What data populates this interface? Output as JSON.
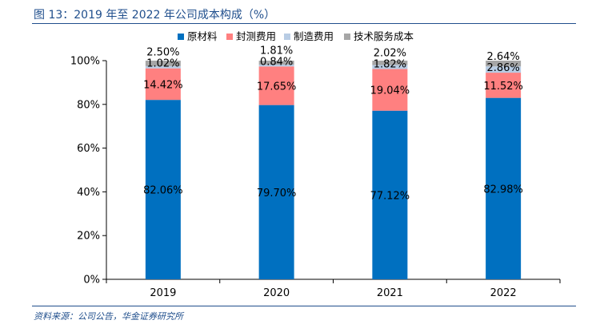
{
  "figure": {
    "title": "图 13：2019 年至 2022 年公司成本构成（%）",
    "source": "资料来源：公司公告，华金证券研究所"
  },
  "chart_data": {
    "type": "bar",
    "stacked": true,
    "categories": [
      "2019",
      "2020",
      "2021",
      "2022"
    ],
    "series": [
      {
        "name": "原材料",
        "color": "#0070c0",
        "values": [
          82.06,
          79.7,
          77.12,
          82.98
        ],
        "labels": [
          "82.06%",
          "79.70%",
          "77.12%",
          "82.98%"
        ]
      },
      {
        "name": "封测费用",
        "color": "#ff8080",
        "values": [
          14.42,
          17.65,
          19.04,
          11.52
        ],
        "labels": [
          "14.42%",
          "17.65%",
          "19.04%",
          "11.52%"
        ]
      },
      {
        "name": "制造费用",
        "color": "#b8cce4",
        "values": [
          1.02,
          0.84,
          1.82,
          2.86
        ],
        "labels": [
          "1.02%",
          "0.84%",
          "1.82%",
          "2.86%"
        ]
      },
      {
        "name": "技术服务成本",
        "color": "#a6a6a6",
        "values": [
          2.5,
          1.81,
          2.02,
          2.64
        ],
        "labels": [
          "2.50%",
          "1.81%",
          "2.02%",
          "2.64%"
        ]
      }
    ],
    "y_ticks": [
      "0%",
      "20%",
      "40%",
      "60%",
      "80%",
      "100%"
    ],
    "ylim": [
      0,
      100
    ],
    "legend_position": "top",
    "grid": false
  }
}
